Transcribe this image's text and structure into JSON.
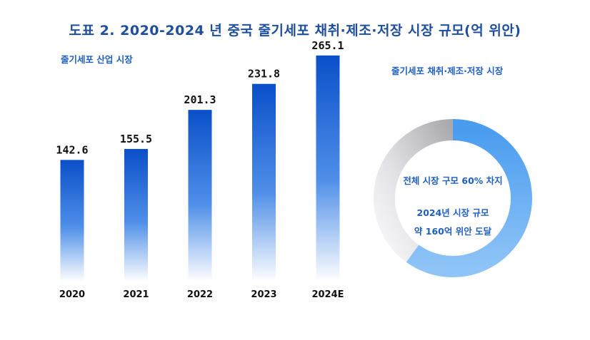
{
  "title": "도표 2. 2020-2024 년 중국 줄기세포 채취·제조·저장 시장 규모(억 위안)",
  "chart_data": [
    {
      "type": "bar",
      "title": "줄기세포 산업 시장",
      "categories": [
        "2020",
        "2021",
        "2022",
        "2023",
        "2024E"
      ],
      "values": [
        142.6,
        155.5,
        201.3,
        231.8,
        265.1
      ],
      "value_labels": [
        "142.6",
        "155.5",
        "201.3",
        "231.8",
        "265.1"
      ],
      "ylim": [
        0,
        280
      ],
      "grid": false,
      "color_top": "#0a4fc9",
      "color_bottom": "#ffffff"
    },
    {
      "type": "pie",
      "title": "줄기세포 채취·제조·저장 시장",
      "share_percent": 60,
      "annotations": [
        "전체 시장 구모 60% 차지",
        "2024년 시장 규모",
        "약 160억 위안 도달"
      ],
      "color_share": "#4a9cf0",
      "color_rest": "#c8c8cc"
    }
  ]
}
